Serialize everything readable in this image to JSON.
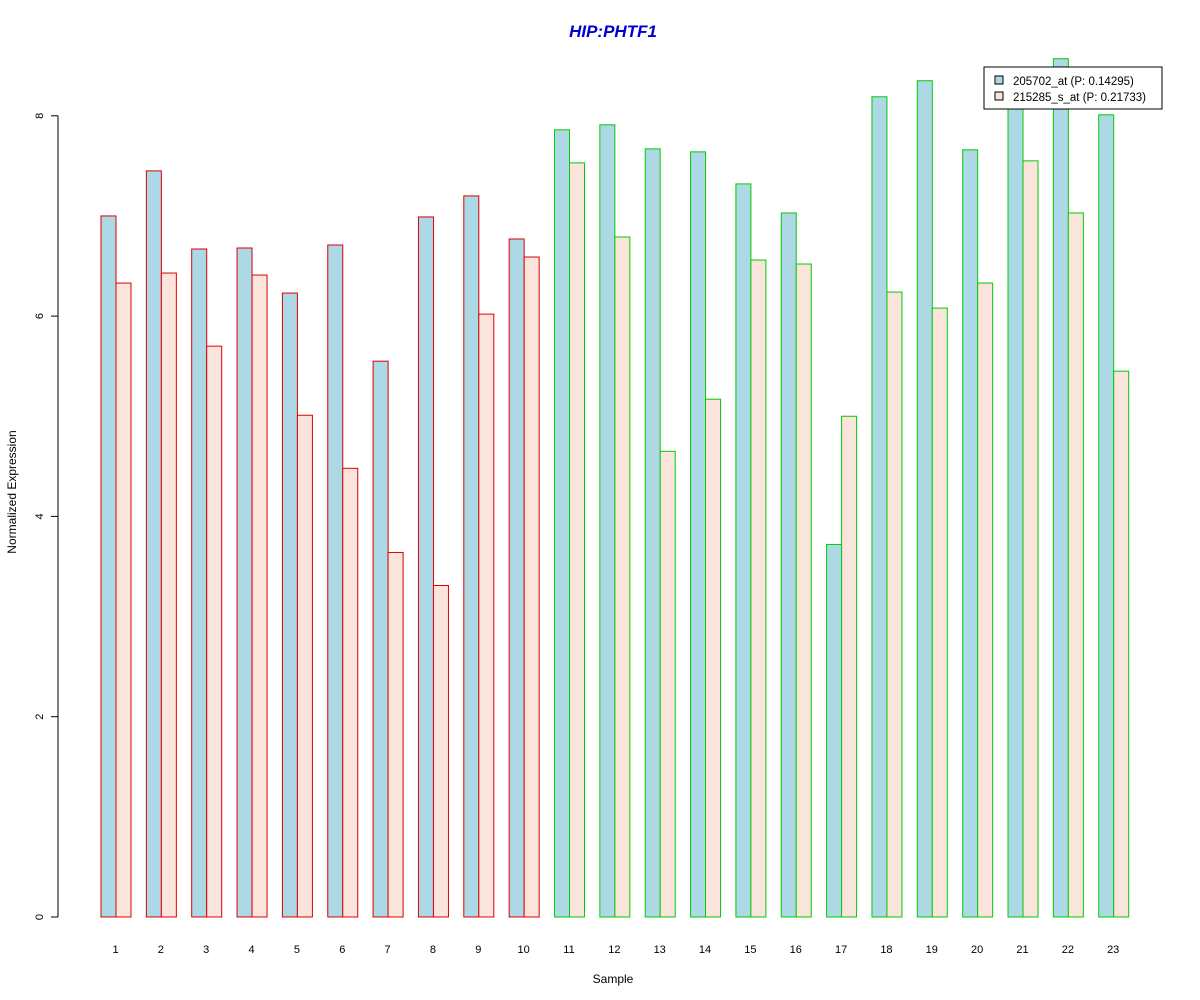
{
  "chart_data": {
    "type": "bar",
    "title": "HIP:PHTF1",
    "xlabel": "Sample",
    "ylabel": "Normalized Expression",
    "ylim": [
      0,
      8.5
    ],
    "yticks": [
      0,
      2,
      4,
      6,
      8
    ],
    "grid": false,
    "legend_position": "top-right",
    "categories": [
      "1",
      "2",
      "3",
      "4",
      "5",
      "6",
      "7",
      "8",
      "9",
      "10",
      "11",
      "12",
      "13",
      "14",
      "15",
      "16",
      "17",
      "18",
      "19",
      "20",
      "21",
      "22",
      "23"
    ],
    "groups": [
      {
        "samples": [
          "1",
          "2",
          "3",
          "4",
          "5",
          "6",
          "7",
          "8",
          "9",
          "10"
        ],
        "border_color": "#dd0000"
      },
      {
        "samples": [
          "11",
          "12",
          "13",
          "14",
          "15",
          "16",
          "17",
          "18",
          "19",
          "20",
          "21",
          "22",
          "23"
        ],
        "border_color": "#00cc00"
      }
    ],
    "series": [
      {
        "name": "205702_at (P: 0.14295)",
        "fill": "#add8e6",
        "values": [
          7.0,
          7.45,
          6.67,
          6.68,
          6.23,
          6.71,
          5.55,
          6.99,
          7.2,
          6.77,
          7.86,
          7.91,
          7.67,
          7.64,
          7.32,
          7.03,
          3.72,
          8.19,
          8.35,
          7.66,
          8.1,
          8.57,
          8.01
        ]
      },
      {
        "name": "215285_s_at (P: 0.21733)",
        "fill": "#fbe4dc",
        "values": [
          6.33,
          6.43,
          5.7,
          6.41,
          5.01,
          4.48,
          3.64,
          3.31,
          6.02,
          6.59,
          7.53,
          6.79,
          4.65,
          5.17,
          6.56,
          6.52,
          5.0,
          6.24,
          6.08,
          6.33,
          7.55,
          7.03,
          5.45
        ]
      }
    ]
  },
  "colors": {
    "title": "#0000cc",
    "axis": "#000000",
    "legend_border": "#000000"
  }
}
